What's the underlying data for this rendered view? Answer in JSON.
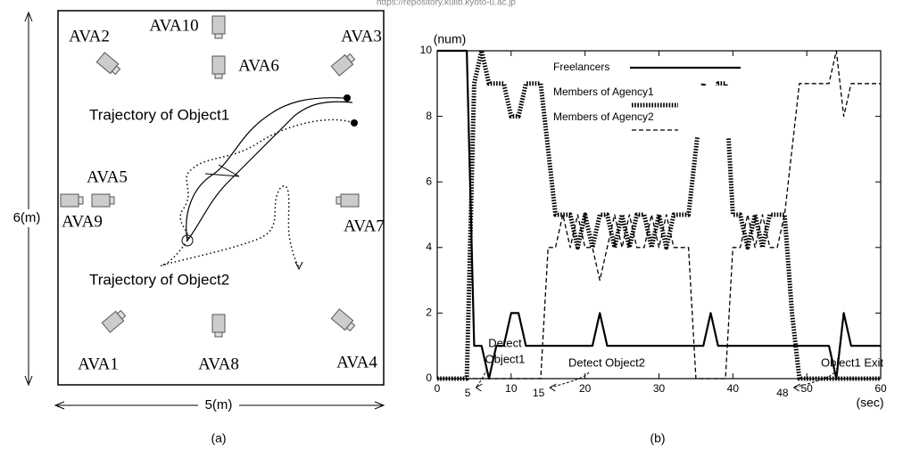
{
  "source": "https://repository.kulib.kyoto-u.ac.jp",
  "panel_a": {
    "cameras": [
      "AVA1",
      "AVA2",
      "AVA3",
      "AVA4",
      "AVA5",
      "AVA6",
      "AVA7",
      "AVA8",
      "AVA9",
      "AVA10"
    ],
    "trajectories": [
      "Trajectory of Object1",
      "Trajectory of Object2"
    ],
    "height_label": "6(m)",
    "width_label": "5(m)",
    "caption": "(a)"
  },
  "panel_b_caption": "(b)",
  "chart_data": {
    "type": "line",
    "xlabel": "(sec)",
    "ylabel": "(num)",
    "x": [
      0,
      1,
      2,
      3,
      4,
      5,
      6,
      7,
      8,
      9,
      10,
      11,
      12,
      13,
      14,
      15,
      16,
      17,
      18,
      19,
      20,
      21,
      22,
      23,
      24,
      25,
      26,
      27,
      28,
      29,
      30,
      31,
      32,
      33,
      34,
      35,
      36,
      37,
      38,
      39,
      40,
      41,
      42,
      43,
      44,
      45,
      46,
      47,
      48,
      49,
      50,
      51,
      52,
      53,
      54,
      55,
      56,
      57,
      58,
      59,
      60
    ],
    "series": [
      {
        "name": "Freelancers",
        "color": "#000000",
        "line_style": "solid",
        "values": [
          10,
          10,
          10,
          10,
          10,
          1,
          1,
          0,
          1,
          1,
          2,
          2,
          1,
          1,
          1,
          1,
          1,
          1,
          1,
          1,
          1,
          1,
          2,
          1,
          1,
          1,
          1,
          1,
          1,
          1,
          1,
          1,
          1,
          1,
          1,
          1,
          1,
          2,
          1,
          1,
          1,
          1,
          1,
          1,
          1,
          1,
          1,
          1,
          1,
          1,
          1,
          1,
          1,
          1,
          0,
          2,
          1,
          1,
          1,
          1,
          1
        ]
      },
      {
        "name": "Members of Agency1",
        "color": "#000000",
        "line_style": "dotted",
        "values": [
          0,
          0,
          0,
          0,
          0,
          9,
          10,
          9,
          9,
          9,
          8,
          8,
          9,
          9,
          9,
          7,
          5,
          5,
          5,
          4,
          5,
          4,
          5,
          5,
          4,
          5,
          4,
          5,
          5,
          4,
          5,
          4,
          5,
          5,
          5,
          7,
          9,
          8,
          9,
          9,
          5,
          5,
          4,
          5,
          4,
          5,
          5,
          5,
          2,
          0,
          0,
          0,
          0,
          0,
          0,
          0,
          0,
          0,
          0,
          0,
          0
        ]
      },
      {
        "name": "Members of Agency2",
        "color": "#000000",
        "line_style": "dashed",
        "values": [
          0,
          0,
          0,
          0,
          0,
          0,
          0,
          0,
          0,
          0,
          0,
          0,
          0,
          0,
          0,
          4,
          4,
          5,
          4,
          5,
          4,
          4,
          3,
          4,
          5,
          4,
          5,
          4,
          4,
          5,
          4,
          5,
          4,
          4,
          4,
          0,
          0,
          0,
          0,
          0,
          4,
          4,
          5,
          4,
          5,
          4,
          4,
          5,
          7,
          9,
          9,
          9,
          9,
          9,
          10,
          8,
          9,
          9,
          9,
          9,
          9
        ]
      }
    ],
    "xlim": [
      0,
      60
    ],
    "xticks": [
      0,
      10,
      20,
      30,
      40,
      50,
      60
    ],
    "ylim": [
      0,
      10
    ],
    "yticks": [
      0,
      2,
      4,
      6,
      8,
      10
    ],
    "legend": "top",
    "annotations": [
      {
        "text": [
          "Detect",
          "Object1"
        ],
        "x": 5
      },
      {
        "text": [
          "Detect Object2"
        ],
        "x": 15
      },
      {
        "text": [
          "Object1 Exit"
        ],
        "x": 48
      }
    ]
  }
}
